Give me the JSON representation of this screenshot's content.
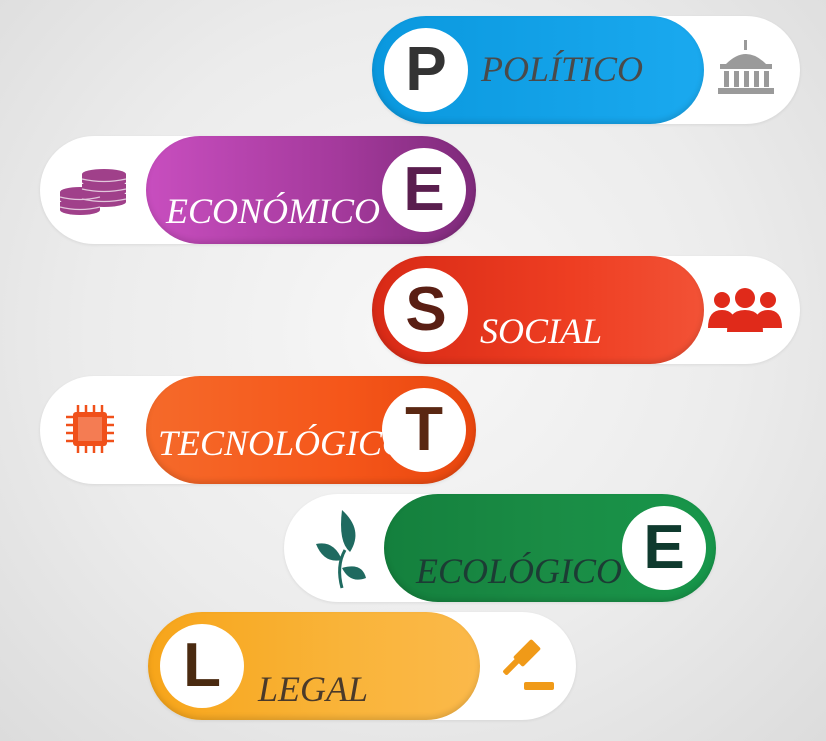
{
  "items": [
    {
      "letter": "P",
      "label": "POLÍTICO",
      "icon": "government-building-icon",
      "color": "#0aa0e6",
      "letter_color": "#333333",
      "label_color": "#4a4a4a",
      "icon_color": "#9a9a9a"
    },
    {
      "letter": "E",
      "label": "ECONÓMICO",
      "icon": "coins-icon",
      "color": "#b040a8",
      "letter_color": "#5a1e4e",
      "label_color": "#ffffff",
      "icon_color": "#a0408a"
    },
    {
      "letter": "S",
      "label": "SOCIAL",
      "icon": "people-group-icon",
      "color": "#e8331e",
      "letter_color": "#5a1f14",
      "label_color": "#ffffff",
      "icon_color": "#e02a1a"
    },
    {
      "letter": "T",
      "label": "TECNOLÓGICO",
      "icon": "microchip-icon",
      "color": "#f5561a",
      "letter_color": "#5a2712",
      "label_color": "#ffffff",
      "icon_color": "#f0501a"
    },
    {
      "letter": "E",
      "label": "ECOLÓGICO",
      "icon": "leaf-plant-icon",
      "color": "#1a8c45",
      "letter_color": "#0f3a2e",
      "label_color": "#1c3c34",
      "icon_color": "#1f6a60"
    },
    {
      "letter": "L",
      "label": "LEGAL",
      "icon": "gavel-icon",
      "color": "#f7a81e",
      "letter_color": "#4a2a10",
      "label_color": "#4a3a2a",
      "icon_color": "#f09a18"
    }
  ]
}
